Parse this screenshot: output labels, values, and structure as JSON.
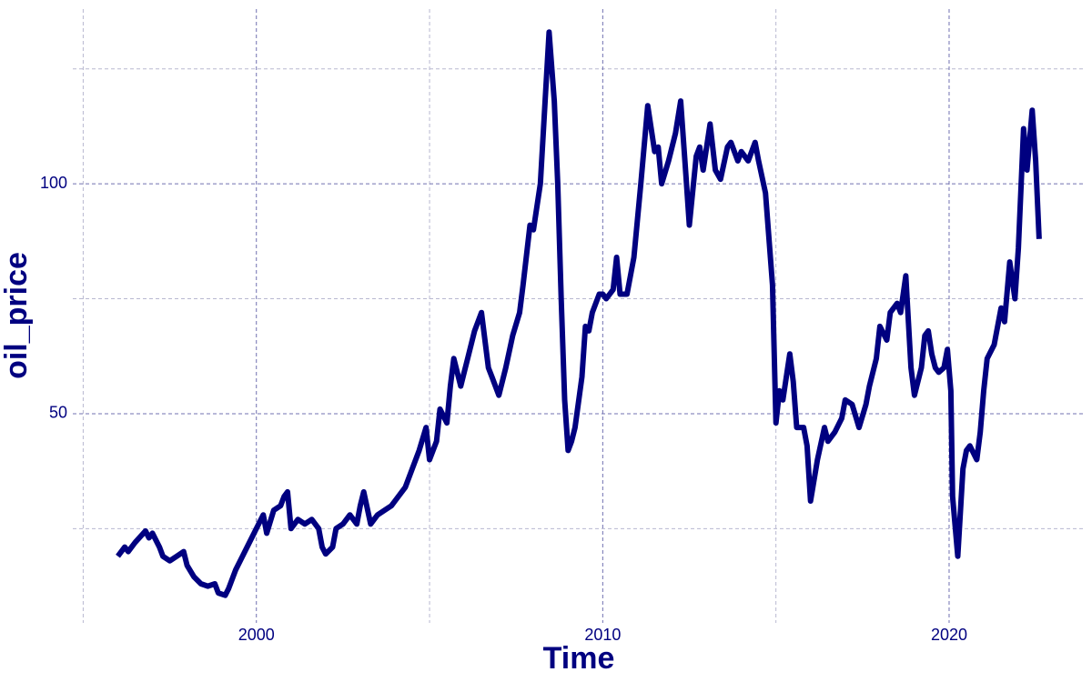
{
  "chart_data": {
    "type": "line",
    "x_label": "Time",
    "y_label": "oil_price",
    "x": [
      1996.0,
      1996.2,
      1996.3,
      1996.5,
      1996.8,
      1996.9,
      1997.0,
      1997.2,
      1997.3,
      1997.5,
      1997.7,
      1997.9,
      1998.0,
      1998.2,
      1998.4,
      1998.6,
      1998.8,
      1998.9,
      1999.1,
      1999.2,
      1999.4,
      1999.6,
      1999.8,
      2000.0,
      2000.2,
      2000.3,
      2000.5,
      2000.7,
      2000.8,
      2000.9,
      2001.0,
      2001.2,
      2001.4,
      2001.6,
      2001.8,
      2001.9,
      2002.0,
      2002.2,
      2002.3,
      2002.5,
      2002.7,
      2002.9,
      2003.0,
      2003.1,
      2003.3,
      2003.5,
      2003.7,
      2003.9,
      2004.0,
      2004.3,
      2004.5,
      2004.7,
      2004.9,
      2005.0,
      2005.2,
      2005.3,
      2005.5,
      2005.6,
      2005.7,
      2005.9,
      2006.0,
      2006.1,
      2006.3,
      2006.5,
      2006.7,
      2006.8,
      2007.0,
      2007.2,
      2007.4,
      2007.6,
      2007.7,
      2007.9,
      2008.0,
      2008.2,
      2008.35,
      2008.45,
      2008.6,
      2008.7,
      2008.8,
      2008.9,
      2009.0,
      2009.1,
      2009.2,
      2009.4,
      2009.5,
      2009.6,
      2009.7,
      2009.9,
      2010.0,
      2010.1,
      2010.3,
      2010.4,
      2010.5,
      2010.7,
      2010.9,
      2011.0,
      2011.1,
      2011.3,
      2011.4,
      2011.5,
      2011.6,
      2011.7,
      2011.9,
      2012.1,
      2012.25,
      2012.4,
      2012.5,
      2012.7,
      2012.8,
      2012.9,
      2013.1,
      2013.25,
      2013.4,
      2013.6,
      2013.7,
      2013.9,
      2014.0,
      2014.2,
      2014.4,
      2014.5,
      2014.7,
      2014.9,
      2015.0,
      2015.1,
      2015.2,
      2015.4,
      2015.5,
      2015.6,
      2015.8,
      2015.9,
      2016.0,
      2016.2,
      2016.4,
      2016.5,
      2016.7,
      2016.9,
      2017.0,
      2017.2,
      2017.4,
      2017.6,
      2017.7,
      2017.9,
      2018.0,
      2018.2,
      2018.3,
      2018.5,
      2018.6,
      2018.75,
      2018.9,
      2019.0,
      2019.2,
      2019.3,
      2019.4,
      2019.5,
      2019.6,
      2019.7,
      2019.85,
      2019.95,
      2020.05,
      2020.1,
      2020.25,
      2020.4,
      2020.5,
      2020.6,
      2020.8,
      2020.9,
      2021.0,
      2021.1,
      2021.3,
      2021.5,
      2021.6,
      2021.75,
      2021.9,
      2022.0,
      2022.15,
      2022.25,
      2022.4,
      2022.5,
      2022.6
    ],
    "series": [
      {
        "name": "oil_price",
        "color": "#000080",
        "values": [
          19,
          21,
          20,
          22,
          24.5,
          23,
          24,
          21,
          19,
          18,
          19,
          20,
          17,
          14.5,
          13,
          12.5,
          13,
          11,
          10.5,
          12,
          16,
          19,
          22,
          25,
          28,
          24,
          29,
          30,
          32,
          33,
          25,
          27,
          26,
          27,
          25,
          21,
          19.5,
          21,
          25,
          26,
          28,
          26,
          30,
          33,
          26,
          28,
          29,
          30,
          31,
          34,
          38,
          42,
          47,
          40,
          44,
          51,
          48,
          56,
          62,
          56,
          59,
          62,
          68,
          72,
          60,
          58,
          54,
          60,
          67,
          72,
          78,
          91,
          90,
          100,
          120,
          133,
          118,
          100,
          75,
          53,
          42,
          44,
          47,
          58,
          69,
          68,
          72,
          76,
          76,
          75,
          77,
          84,
          76,
          76,
          84,
          92,
          100,
          117,
          112,
          107,
          108,
          100,
          105,
          111,
          118,
          102,
          91,
          106,
          108,
          103,
          113,
          103,
          101,
          108,
          109,
          105,
          107,
          105,
          109,
          105,
          98,
          78,
          48,
          55,
          53,
          63,
          57,
          47,
          47,
          43,
          31,
          40,
          47,
          44,
          46,
          49,
          53,
          52,
          47,
          52,
          56,
          62,
          69,
          66,
          72,
          74,
          72,
          80,
          60,
          54,
          60,
          67,
          68,
          63,
          60,
          59,
          60,
          64,
          55,
          32,
          19,
          38,
          42,
          43,
          40,
          46,
          55,
          62,
          65,
          73,
          70,
          83,
          75,
          86,
          112,
          103,
          116,
          105,
          88
        ]
      }
    ],
    "xlim": [
      1994.7,
      2023.6
    ],
    "ylim": [
      4.5,
      138
    ],
    "xticks": [
      2000,
      2010,
      2020
    ],
    "yticks": [
      50,
      100
    ],
    "xminor": [
      1995,
      2005,
      2015
    ],
    "yminor": [
      25,
      75,
      125
    ],
    "grid": true
  }
}
